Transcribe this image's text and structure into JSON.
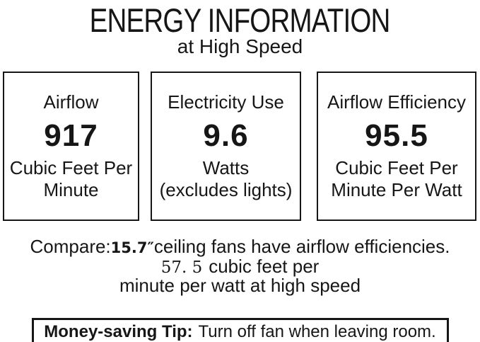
{
  "page": {
    "background_color": "#ffffff",
    "text_color": "#161616"
  },
  "header": {
    "title": "ENERGY INFORMATION",
    "subtitle": "at High Speed"
  },
  "metrics": [
    {
      "id": "airflow",
      "label": "Airflow",
      "value": "917",
      "unit_lines": [
        "Cubic Feet Per",
        "Minute"
      ]
    },
    {
      "id": "electricity-use",
      "label": "Electricity Use",
      "value": "9.6",
      "unit_lines": [
        "Watts",
        "(excludes lights)"
      ]
    },
    {
      "id": "airflow-efficiency",
      "label": "Airflow Efficiency",
      "value": "95.5",
      "unit_lines": [
        "Cubic Feet Per",
        "Minute Per Watt"
      ]
    }
  ],
  "compare": {
    "prefix": "Compare:",
    "fan_size": "15.7″",
    "line1_rest": "ceiling fans have airflow efficiencies.",
    "efficiency_value": "57. 5",
    "line2_rest": "cubic feet per",
    "line3": "minute per watt at high speed"
  },
  "tip": {
    "label": "Money-saving Tip:",
    "text": "Turn off fan when leaving room."
  }
}
